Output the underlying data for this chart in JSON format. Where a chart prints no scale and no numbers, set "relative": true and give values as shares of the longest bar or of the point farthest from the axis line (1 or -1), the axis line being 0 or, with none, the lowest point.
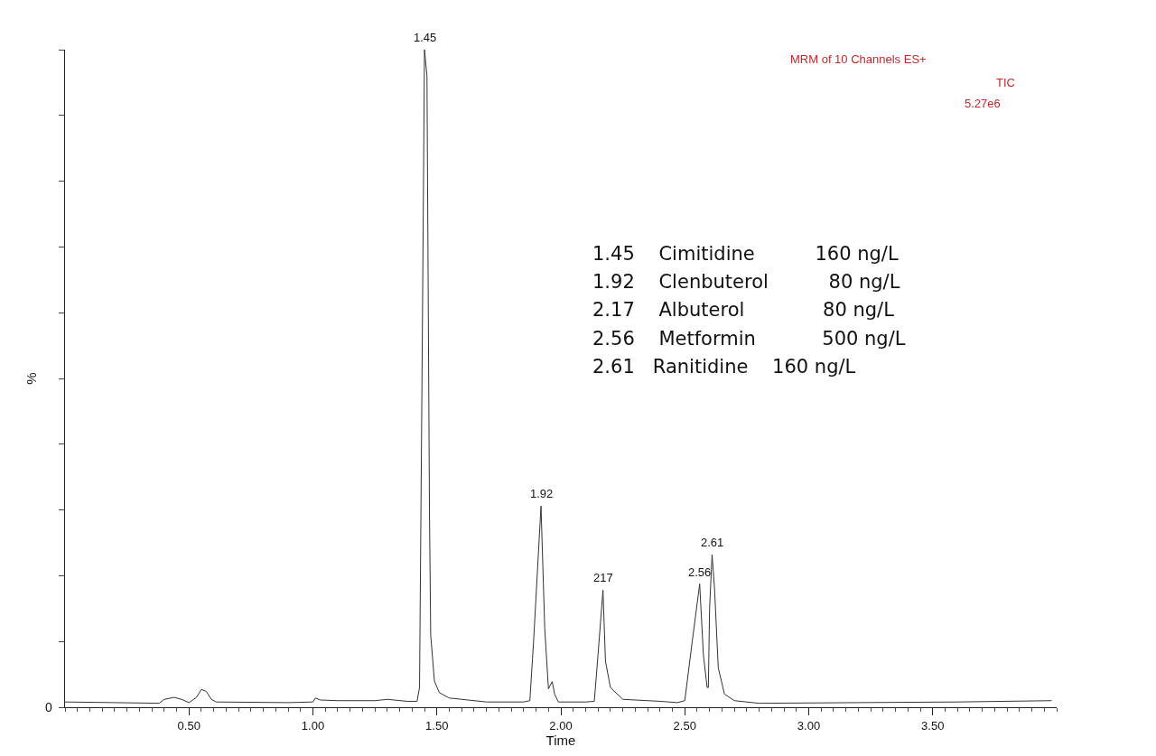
{
  "chart_data": {
    "type": "line",
    "relative": true,
    "xlabel": "Time",
    "ylabel": "%",
    "x": [
      0.0,
      0.2,
      0.38,
      0.4,
      0.44,
      0.47,
      0.5,
      0.53,
      0.55,
      0.57,
      0.59,
      0.61,
      0.9,
      1.0,
      1.01,
      1.03,
      1.1,
      1.25,
      1.3,
      1.38,
      1.42,
      1.43,
      1.44,
      1.45,
      1.46,
      1.47,
      1.475,
      1.49,
      1.51,
      1.55,
      1.6,
      1.7,
      1.85,
      1.875,
      1.89,
      1.92,
      1.935,
      1.95,
      1.965,
      1.975,
      1.99,
      2.1,
      2.135,
      2.15,
      2.17,
      2.18,
      2.2,
      2.25,
      2.4,
      2.47,
      2.5,
      2.53,
      2.56,
      2.575,
      2.59,
      2.595,
      2.6,
      2.61,
      2.62,
      2.635,
      2.66,
      2.7,
      2.8,
      3.2,
      3.6,
      3.98
    ],
    "series": [
      {
        "color": "#333333",
        "values": [
          0.008,
          0.007,
          0.006,
          0.012,
          0.015,
          0.012,
          0.007,
          0.015,
          0.027,
          0.024,
          0.012,
          0.008,
          0.007,
          0.008,
          0.014,
          0.011,
          0.01,
          0.01,
          0.012,
          0.009,
          0.009,
          0.03,
          0.5,
          1.0,
          0.96,
          0.3,
          0.11,
          0.04,
          0.022,
          0.014,
          0.012,
          0.008,
          0.008,
          0.01,
          0.1,
          0.306,
          0.12,
          0.028,
          0.039,
          0.02,
          0.008,
          0.008,
          0.009,
          0.08,
          0.178,
          0.07,
          0.03,
          0.012,
          0.009,
          0.007,
          0.01,
          0.1,
          0.1875,
          0.08,
          0.03,
          0.03,
          0.15,
          0.232,
          0.18,
          0.06,
          0.02,
          0.01,
          0.006,
          0.007,
          0.008,
          0.01
        ]
      }
    ],
    "xlim": [
      0.0,
      4.0
    ],
    "xticks": [
      {
        "value": 0.5,
        "label": "0.50"
      },
      {
        "value": 1.0,
        "label": "1.00"
      },
      {
        "value": 1.5,
        "label": "1.50"
      },
      {
        "value": 2.0,
        "label": "2.00"
      },
      {
        "value": 2.5,
        "label": "2.50"
      },
      {
        "value": 3.0,
        "label": "3.00"
      },
      {
        "value": 3.5,
        "label": "3.50"
      }
    ],
    "annotations": [
      {
        "text": "1.45",
        "x": 1.45,
        "y": 1.0
      },
      {
        "text": "1.92",
        "x": 1.92,
        "y": 0.306
      },
      {
        "text": "217",
        "x": 2.17,
        "y": 0.178
      },
      {
        "text": "2.56",
        "x": 2.56,
        "y": 0.1875
      },
      {
        "text": "2.61",
        "x": 2.61,
        "y": 0.232
      },
      "0",
      "MRM of 10 Channels ES+",
      "TIC",
      "5.27e6",
      "1.45    Cimitidine          160 ng/L",
      "1.92    Clenbuterol          80 ng/L",
      "2.17    Albuterol             80 ng/L",
      "2.56    Metformin           500 ng/L",
      "2.61   Ranitidine    160 ng/L"
    ],
    "marker": "none",
    "line_style": "solid"
  }
}
